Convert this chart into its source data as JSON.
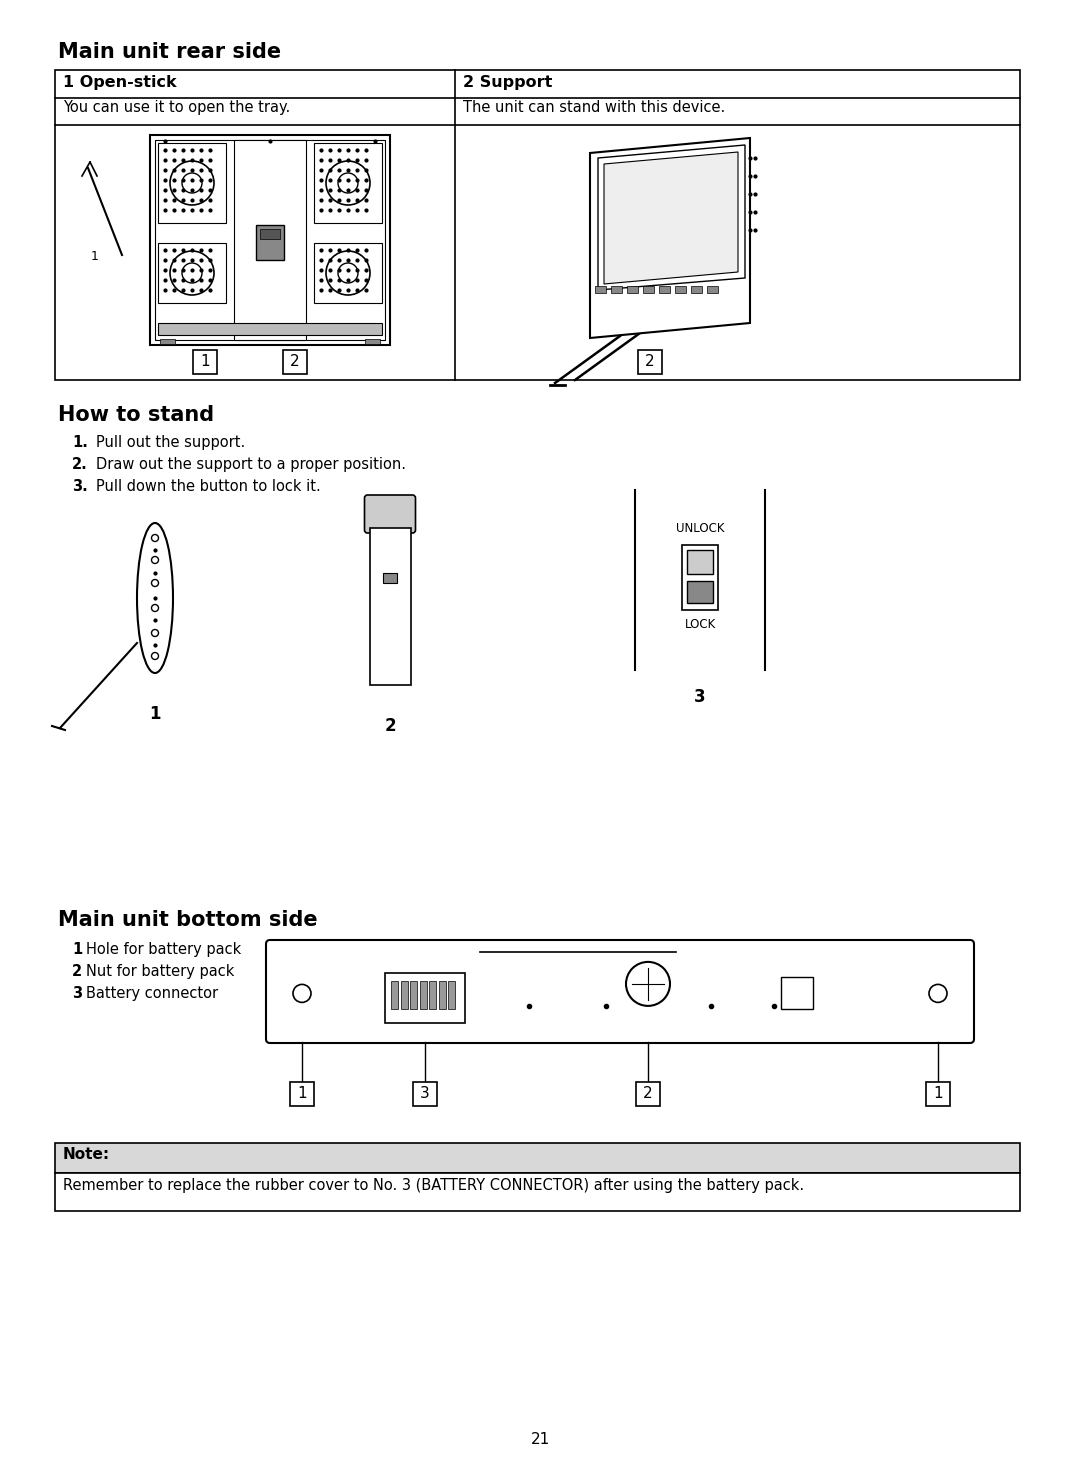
{
  "bg_color": "#ffffff",
  "text_color": "#000000",
  "page_number": "21",
  "section1_title": "Main unit rear side",
  "section2_title": "How to stand",
  "section3_title": "Main unit bottom side",
  "col1_header": "1 Open-stick",
  "col2_header": "2 Support",
  "col1_desc": "You can use it to open the tray.",
  "col2_desc": "The unit can stand with this device.",
  "stand_step1": "1. Pull out the support.",
  "stand_step2": "2. Draw out the support to a proper position.",
  "stand_step3": "3. Pull down the button to lock it.",
  "bottom_title": "Main unit bottom side",
  "bottom_item1": "1 Hole for battery pack",
  "bottom_item2": "2 Nut for battery pack",
  "bottom_item3": "3 Battery connector",
  "note_header": "Note:",
  "note_text": "Remember to replace the rubber cover to No. 3 (BATTERY CONNECTOR) after using the battery pack.",
  "unlock_text": "UNLOCK",
  "lock_text": "LOCK"
}
